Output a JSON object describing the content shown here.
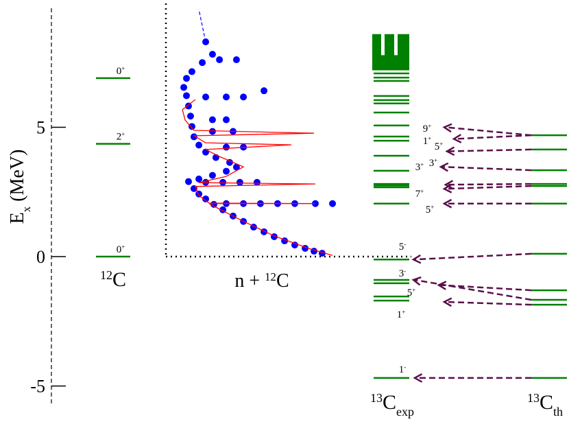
{
  "chart_data": {
    "type": "level-scheme",
    "ylabel": [
      "E",
      "x",
      " (MeV)"
    ],
    "ylim": [
      -5.7,
      9.6
    ],
    "yticks": [
      -5,
      0,
      5
    ],
    "level_color": "#008000",
    "arrow_color": "#5a0f4a",
    "c12": {
      "label": [
        "12",
        "C"
      ],
      "levels": [
        0,
        4.36,
        6.9
      ],
      "level_labels": [
        [
          "0",
          "+"
        ],
        [
          "2",
          "+"
        ],
        [
          "0",
          "+"
        ]
      ]
    },
    "n12c": {
      "label": [
        "n + ",
        "12",
        "C"
      ],
      "xlim": [
        0,
        100
      ],
      "data": {
        "color": "#0000ff",
        "x": [
          91.9,
          87.1,
          81.9,
          75.8,
          69.8,
          63.7,
          57.7,
          51.6,
          45.6,
          39.5,
          33.5,
          28.2,
          35.5,
          45.6,
          55.6,
          65.7,
          75.8,
          87.9,
          98.0,
          23.4,
          19.4,
          16.5,
          23.4,
          33.5,
          43.5,
          53.6,
          13.3,
          19.4,
          27.4,
          35.5,
          41.5,
          37.5,
          29.4,
          23.4,
          35.5,
          45.6,
          19.4,
          16.5,
          27.4,
          39.5,
          15.3,
          27.4,
          35.5,
          14.5,
          13.3,
          23.4,
          35.5,
          45.6,
          12.1,
          10.5,
          57.7,
          12.1,
          15.3,
          21.4,
          27.4,
          31.5,
          41.5,
          23.4
        ],
        "y": [
          0.13,
          0.21,
          0.32,
          0.45,
          0.61,
          0.77,
          0.96,
          1.14,
          1.36,
          1.57,
          1.81,
          2.02,
          2.05,
          2.05,
          2.05,
          2.05,
          2.05,
          2.05,
          2.05,
          2.23,
          2.42,
          2.63,
          2.87,
          2.87,
          2.87,
          2.87,
          2.9,
          3.0,
          3.14,
          3.3,
          3.46,
          3.64,
          3.83,
          4.04,
          4.23,
          4.23,
          4.31,
          4.63,
          4.84,
          4.84,
          5.03,
          5.29,
          5.29,
          5.43,
          5.82,
          6.17,
          6.17,
          6.17,
          6.22,
          6.54,
          6.41,
          6.89,
          7.15,
          7.5,
          7.82,
          7.61,
          7.61,
          8.3
        ]
      },
      "fit": {
        "color": "#ff0000",
        "x": [
          98,
          83.9,
          63.7,
          43.5,
          29.4,
          25.4,
          87.9,
          25.4,
          19.4,
          17.3,
          87.9,
          19.4,
          35.5,
          45.6,
          31.5,
          23.4,
          73.8,
          23.4,
          16.5,
          87.1,
          16.5,
          11.3,
          9.7,
          17.3
        ],
        "y": [
          0.05,
          0.32,
          0.8,
          1.43,
          1.91,
          2.05,
          2.05,
          2.07,
          2.36,
          2.71,
          2.81,
          2.86,
          3.1,
          3.47,
          3.87,
          4.14,
          4.32,
          4.4,
          4.67,
          4.77,
          4.88,
          5.28,
          5.68,
          6.07
        ]
      },
      "extrap": {
        "color": "#0000ff",
        "x": [
          23.4,
          19.4
        ],
        "y": [
          8.3,
          9.55
        ]
      }
    },
    "exp": {
      "label": [
        "13",
        "C",
        "exp"
      ],
      "levels": [
        -4.69,
        -1.7,
        -1.54,
        -1.03,
        -0.9,
        -0.11,
        2.05,
        2.68,
        2.75,
        2.81,
        3.32,
        3.9,
        4.48,
        4.64,
        5.07,
        5.57,
        5.92,
        6.05,
        6.21,
        6.79,
        6.92,
        7.08
      ],
      "band": [
        7.2,
        8.6
      ]
    },
    "th": {
      "label": [
        "13",
        "C",
        "th"
      ],
      "levels": [
        -4.69,
        -1.86,
        -1.67,
        -1.3,
        0.11,
        2.05,
        2.73,
        2.81,
        3.34,
        4.14,
        4.69
      ]
    },
    "transitions": [
      {
        "from": 4.69,
        "to": 5.0,
        "label": [
          "9",
          "+"
        ]
      },
      {
        "from": 4.69,
        "to": 4.55,
        "label": [
          "1",
          "+"
        ]
      },
      {
        "from": 4.14,
        "to": 4.07,
        "label": [
          "5",
          "+"
        ]
      },
      {
        "from": 3.34,
        "to": 3.47,
        "label": [
          "3",
          "+"
        ]
      },
      {
        "from": 2.81,
        "to": 2.78,
        "label": [
          "3",
          "+"
        ]
      },
      {
        "from": 2.73,
        "to": 2.62,
        "label": [
          "7",
          "+"
        ]
      },
      {
        "from": 2.05,
        "to": 2.05,
        "label": [
          "5",
          "+"
        ]
      },
      {
        "from": 0.11,
        "to": -0.11,
        "label": [
          "5",
          "-"
        ]
      },
      {
        "from": -1.67,
        "to": -0.9,
        "label": [
          "3",
          "-"
        ]
      },
      {
        "from": -1.3,
        "to": -1.1,
        "label": [
          "5",
          "+"
        ]
      },
      {
        "from": -1.86,
        "to": -1.75,
        "label": [
          "1",
          "+"
        ]
      },
      {
        "from": -4.69,
        "to": -4.69,
        "label": [
          "1",
          "-"
        ]
      }
    ]
  }
}
